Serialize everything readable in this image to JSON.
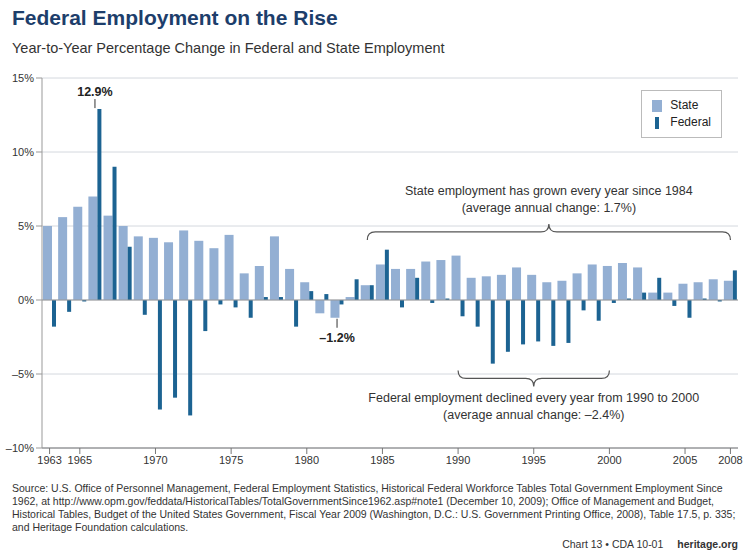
{
  "chart_data": {
    "type": "bar",
    "title": "Federal Employment on the Rise",
    "subtitle": "Year-to-Year Percentage Change in Federal and State Employment",
    "x": [
      1963,
      1964,
      1965,
      1966,
      1967,
      1968,
      1969,
      1970,
      1971,
      1972,
      1973,
      1974,
      1975,
      1976,
      1977,
      1978,
      1979,
      1980,
      1981,
      1982,
      1983,
      1984,
      1985,
      1986,
      1987,
      1988,
      1989,
      1990,
      1991,
      1992,
      1993,
      1994,
      1995,
      1996,
      1997,
      1998,
      1999,
      2000,
      2001,
      2002,
      2003,
      2004,
      2005,
      2006,
      2007,
      2008
    ],
    "series": [
      {
        "name": "State",
        "color": "#93afd3",
        "values": [
          5.0,
          5.6,
          6.3,
          7.0,
          5.7,
          5.0,
          4.3,
          4.2,
          3.9,
          4.7,
          4.0,
          3.5,
          4.4,
          1.8,
          2.3,
          4.3,
          2.1,
          1.2,
          -0.9,
          -1.2,
          0.2,
          1.0,
          2.4,
          2.1,
          2.1,
          2.6,
          2.7,
          3.0,
          1.5,
          1.6,
          1.7,
          2.2,
          1.7,
          1.2,
          1.3,
          1.8,
          2.4,
          2.3,
          2.5,
          2.2,
          0.5,
          0.5,
          1.1,
          1.2,
          1.4,
          1.3
        ]
      },
      {
        "name": "Federal",
        "color": "#1c6392",
        "values": [
          -1.8,
          -0.8,
          -0.1,
          12.9,
          9.0,
          3.6,
          -1.0,
          -7.4,
          -6.6,
          -7.8,
          -2.1,
          -0.3,
          -0.5,
          -1.2,
          0.2,
          0.2,
          -1.8,
          0.6,
          0.4,
          -0.3,
          1.4,
          1.0,
          3.4,
          -0.5,
          1.5,
          -0.2,
          0.1,
          -1.1,
          -1.8,
          -4.3,
          -3.5,
          -3.0,
          -2.8,
          -3.1,
          -2.9,
          -0.7,
          -1.4,
          -0.2,
          0.1,
          0.5,
          1.5,
          -0.4,
          -1.2,
          0.1,
          -0.1,
          2.0
        ]
      }
    ],
    "xlim": [
      1962.5,
      2008.5
    ],
    "xticks": [
      1963,
      1965,
      1970,
      1975,
      1980,
      1985,
      1990,
      1995,
      2000,
      2005,
      2008
    ],
    "ylim": [
      -10,
      15
    ],
    "yticks": [
      {
        "value": -10,
        "label": "–10%"
      },
      {
        "value": -5,
        "label": "–5%"
      },
      {
        "value": 0,
        "label": "0%"
      },
      {
        "value": 5,
        "label": "5%"
      },
      {
        "value": 10,
        "label": "10%"
      },
      {
        "value": 15,
        "label": "15%"
      }
    ],
    "grid": true,
    "legend": "upper right",
    "annotations": [
      {
        "text": "12.9%",
        "x": 1966,
        "y": 12.9
      },
      {
        "text": "–1.2%",
        "x": 1982,
        "y": -1.2
      },
      {
        "text": [
          "State employment has grown every year since 1984",
          "(average annual change: 1.7%)"
        ],
        "x": [
          1984,
          2008
        ],
        "y": 4.6
      },
      {
        "text": [
          "Federal employment declined every year from 1990 to 2000",
          "(average annual change: –2.4%)"
        ],
        "x": [
          1990,
          2000
        ],
        "y": -5.3
      }
    ],
    "source": "Source: U.S. Office of Personnel Management, Federal Employment Statistics, Historical Federal Workforce Tables Total Government Employment Since 1962, at http://www.opm.gov/feddata/HistoricalTables/TotalGovernmentSince1962.asp#note1 (December 10, 2009); Office of Management and Budget, Historical Tables, Budget of the United States Government, Fiscal Year 2009 (Washington, D.C.: U.S. Government Printing Office, 2008), Table 17.5, p. 335; and Heritage Foundation calculations.",
    "footer": [
      "Chart 13 • CDA 10-01",
      "heritage.org"
    ]
  }
}
